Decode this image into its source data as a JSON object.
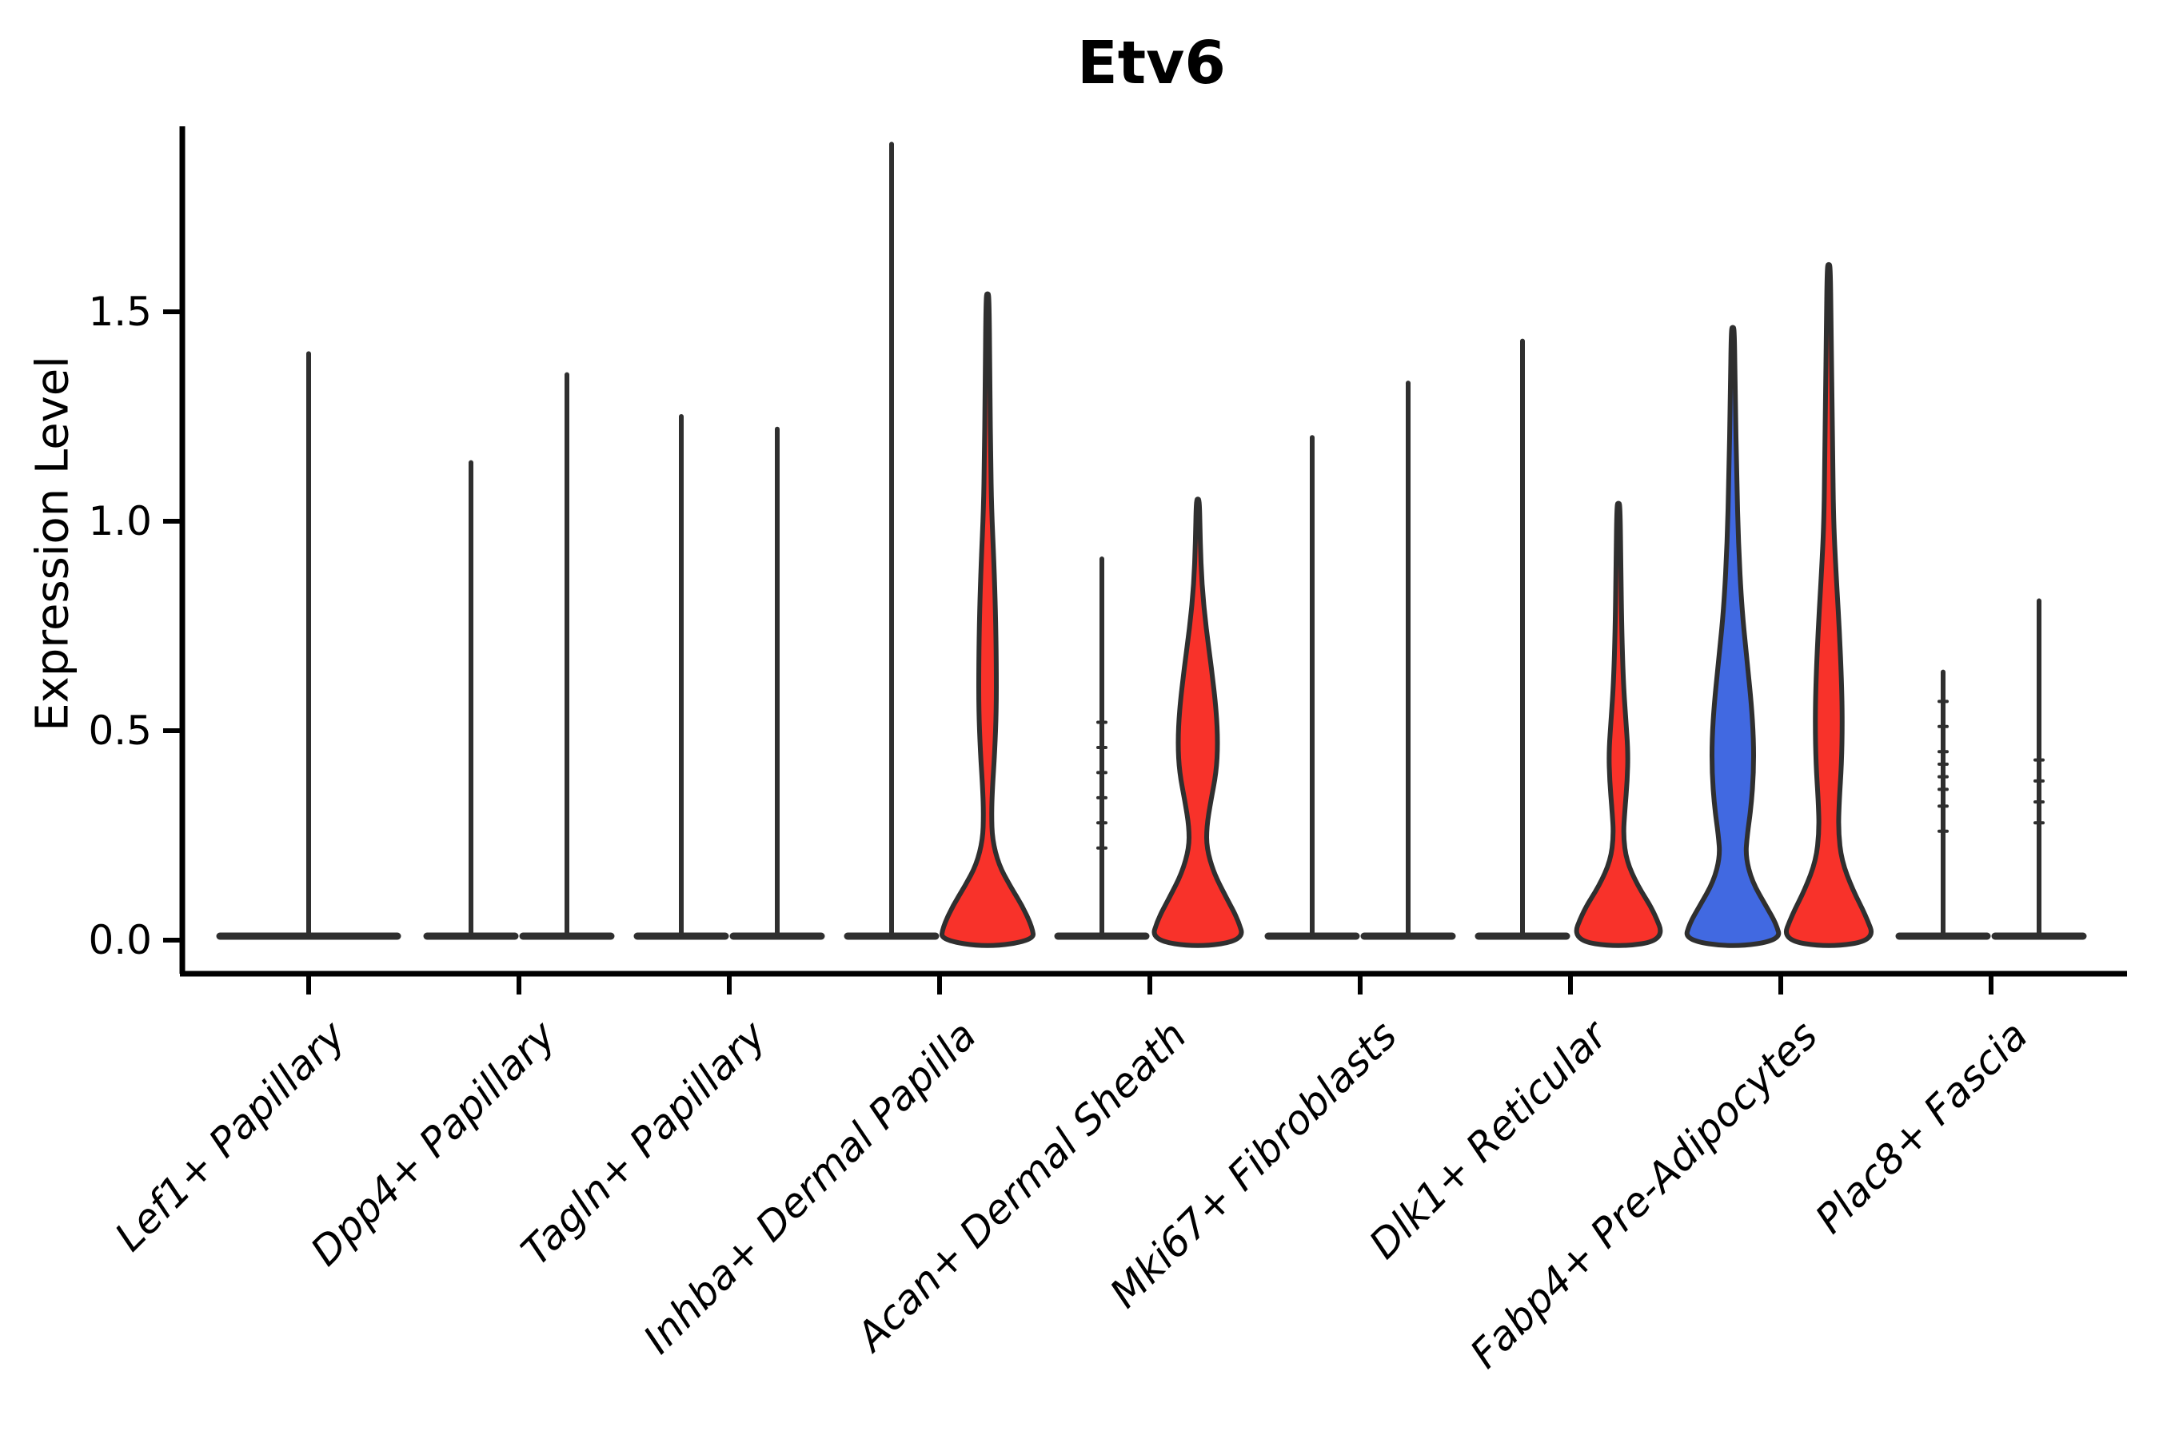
{
  "chart_data": {
    "type": "violin",
    "title": "Etv6",
    "ylabel": "Expression Level",
    "xlabel": "",
    "grid": false,
    "legend": "none",
    "ytick_values": [
      0.0,
      0.5,
      1.0,
      1.5
    ],
    "ytick_labels": [
      "0.0",
      "0.5",
      "1.0",
      "1.5"
    ],
    "ylim": [
      -0.08,
      1.95
    ],
    "categories": [
      "Lef1+ Papillary",
      "Dpp4+ Papillary",
      "Tagln+ Papillary",
      "Inhba+ Dermal Papilla",
      "Acan+ Dermal Sheath",
      "Mki67+ Fibroblasts",
      "Dlk1+ Reticular",
      "Fabp4+ Pre-Adipocytes",
      "Plac8+ Fascia"
    ],
    "colors": {
      "red_fill": "#F8322A",
      "blue_fill": "#4169E1",
      "outline": "#2F2F2F",
      "axis": "#000000"
    },
    "groups": [
      {
        "label": "Lef1+ Papillary",
        "violins": [
          {
            "kind": "spike",
            "side": "center",
            "max": 1.4,
            "fill": null
          }
        ]
      },
      {
        "label": "Dpp4+ Papillary",
        "violins": [
          {
            "kind": "spike",
            "side": "left",
            "max": 1.14,
            "fill": null
          },
          {
            "kind": "spike",
            "side": "right",
            "max": 1.35,
            "fill": null
          }
        ]
      },
      {
        "label": "Tagln+ Papillary",
        "violins": [
          {
            "kind": "spike",
            "side": "left",
            "max": 1.25,
            "fill": null
          },
          {
            "kind": "spike",
            "side": "right",
            "max": 1.22,
            "fill": null
          }
        ]
      },
      {
        "label": "Inhba+ Dermal Papilla",
        "violins": [
          {
            "kind": "spike",
            "side": "left",
            "max": 1.9,
            "fill": null
          },
          {
            "kind": "filled",
            "side": "right",
            "max": 1.54,
            "fill": "red_fill",
            "profile": [
              [
                1.54,
                2
              ],
              [
                1.3,
                3
              ],
              [
                1.15,
                4
              ],
              [
                1.03,
                5
              ],
              [
                0.9,
                8
              ],
              [
                0.78,
                10
              ],
              [
                0.66,
                11
              ],
              [
                0.55,
                11
              ],
              [
                0.45,
                9
              ],
              [
                0.36,
                6
              ],
              [
                0.3,
                5
              ],
              [
                0.24,
                6
              ],
              [
                0.18,
                14
              ],
              [
                0.13,
                28
              ],
              [
                0.08,
                44
              ],
              [
                0.03,
                56
              ],
              [
                0.0,
                58
              ]
            ]
          }
        ]
      },
      {
        "label": "Acan+ Dermal Sheath",
        "violins": [
          {
            "kind": "spike",
            "side": "left",
            "max": 0.91,
            "fill": null,
            "dots": [
              0.22,
              0.28,
              0.34,
              0.4,
              0.46,
              0.52
            ]
          },
          {
            "kind": "filled",
            "side": "right",
            "max": 1.05,
            "fill": "red_fill",
            "profile": [
              [
                1.05,
                2
              ],
              [
                0.95,
                3
              ],
              [
                0.85,
                5
              ],
              [
                0.75,
                10
              ],
              [
                0.65,
                17
              ],
              [
                0.55,
                23
              ],
              [
                0.47,
                25
              ],
              [
                0.4,
                23
              ],
              [
                0.33,
                16
              ],
              [
                0.27,
                11
              ],
              [
                0.22,
                11
              ],
              [
                0.16,
                20
              ],
              [
                0.1,
                36
              ],
              [
                0.05,
                50
              ],
              [
                0.0,
                58
              ]
            ]
          }
        ]
      },
      {
        "label": "Mki67+ Fibroblasts",
        "violins": [
          {
            "kind": "spike",
            "side": "left",
            "max": 1.2,
            "fill": null
          },
          {
            "kind": "spike",
            "side": "right",
            "max": 1.33,
            "fill": null
          }
        ]
      },
      {
        "label": "Dlk1+ Reticular",
        "violins": [
          {
            "kind": "spike",
            "side": "left",
            "max": 1.43,
            "fill": null
          },
          {
            "kind": "filled",
            "side": "right",
            "max": 1.04,
            "fill": "red_fill",
            "profile": [
              [
                1.04,
                2
              ],
              [
                0.9,
                3
              ],
              [
                0.75,
                4
              ],
              [
                0.62,
                6
              ],
              [
                0.53,
                9
              ],
              [
                0.45,
                12
              ],
              [
                0.38,
                11
              ],
              [
                0.31,
                8
              ],
              [
                0.25,
                6
              ],
              [
                0.19,
                10
              ],
              [
                0.13,
                24
              ],
              [
                0.07,
                44
              ],
              [
                0.0,
                58
              ]
            ]
          }
        ]
      },
      {
        "label": "Fabp4+ Pre-Adipocytes",
        "violins": [
          {
            "kind": "filled",
            "side": "left",
            "max": 1.46,
            "fill": "blue_fill",
            "profile": [
              [
                1.46,
                2
              ],
              [
                1.3,
                3
              ],
              [
                1.1,
                5
              ],
              [
                0.95,
                7
              ],
              [
                0.8,
                11
              ],
              [
                0.68,
                17
              ],
              [
                0.57,
                23
              ],
              [
                0.48,
                26
              ],
              [
                0.4,
                26
              ],
              [
                0.32,
                23
              ],
              [
                0.25,
                18
              ],
              [
                0.2,
                16
              ],
              [
                0.14,
                24
              ],
              [
                0.08,
                42
              ],
              [
                0.04,
                54
              ],
              [
                0.0,
                60
              ]
            ]
          },
          {
            "kind": "filled",
            "side": "right",
            "max": 1.61,
            "fill": "red_fill",
            "profile": [
              [
                1.61,
                2
              ],
              [
                1.45,
                3
              ],
              [
                1.3,
                4
              ],
              [
                1.15,
                5
              ],
              [
                1.0,
                6
              ],
              [
                0.88,
                9
              ],
              [
                0.75,
                13
              ],
              [
                0.62,
                16
              ],
              [
                0.52,
                17
              ],
              [
                0.42,
                16
              ],
              [
                0.33,
                13
              ],
              [
                0.26,
                12
              ],
              [
                0.19,
                16
              ],
              [
                0.12,
                30
              ],
              [
                0.06,
                46
              ],
              [
                0.0,
                58
              ]
            ]
          }
        ]
      },
      {
        "label": "Plac8+ Fascia",
        "violins": [
          {
            "kind": "spike",
            "side": "left",
            "max": 0.64,
            "fill": null,
            "dots": [
              0.26,
              0.32,
              0.36,
              0.39,
              0.42,
              0.45,
              0.51,
              0.57
            ]
          },
          {
            "kind": "spike",
            "side": "right",
            "max": 0.81,
            "fill": null,
            "dots": [
              0.28,
              0.33,
              0.38,
              0.43
            ]
          }
        ]
      }
    ]
  }
}
